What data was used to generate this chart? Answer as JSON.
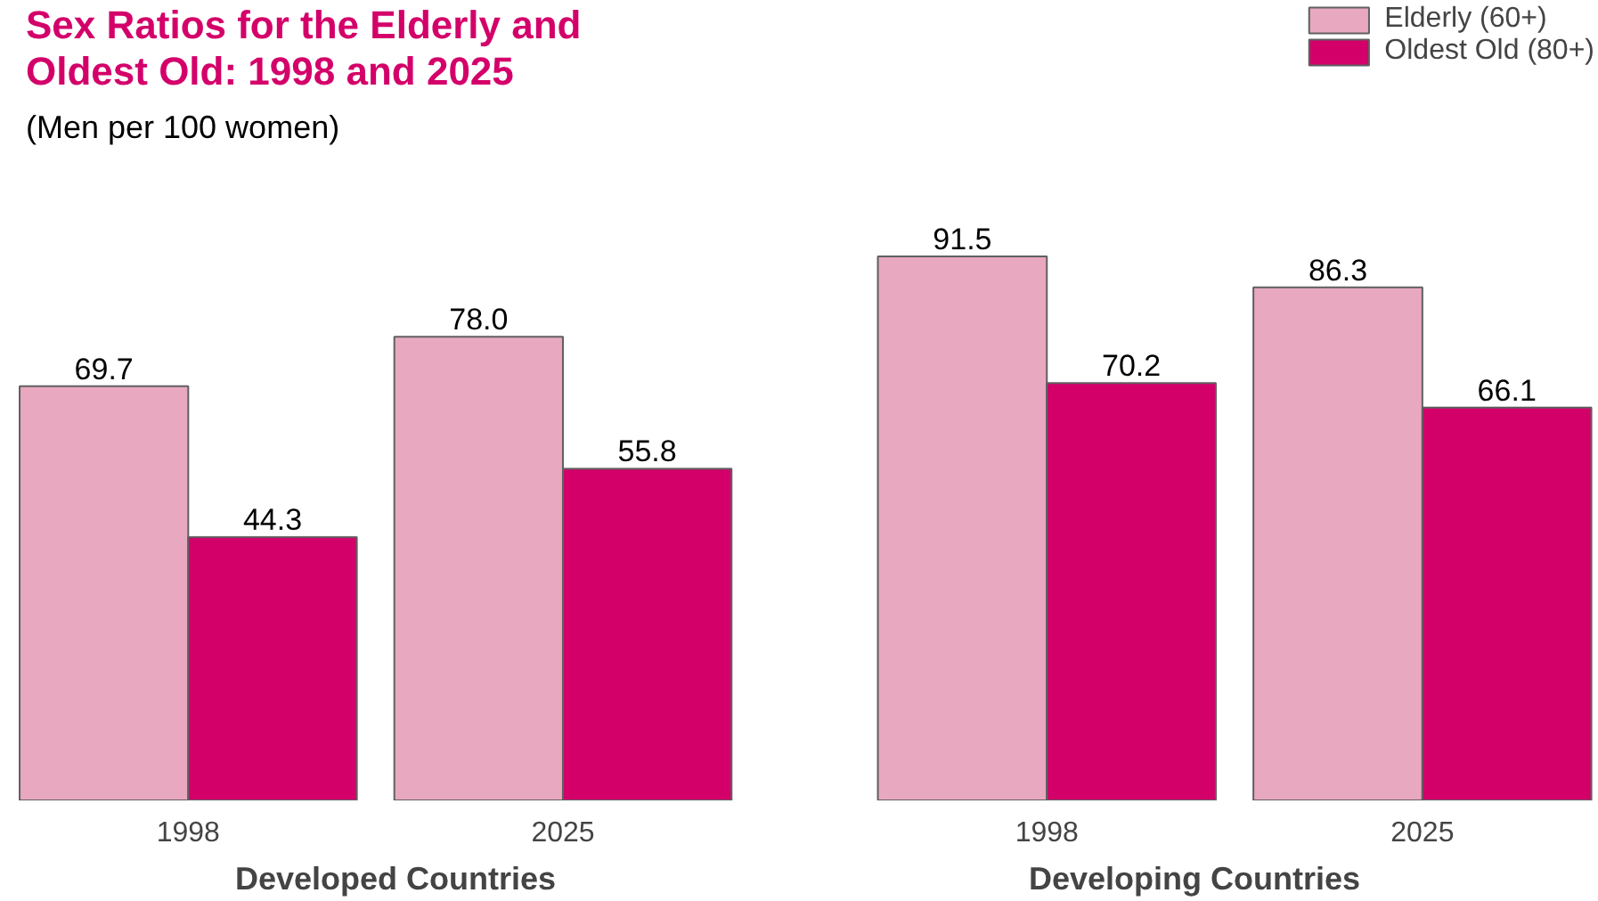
{
  "chart_data": [
    {
      "type": "bar",
      "title": "Sex Ratios for the Elderly and\nOldest Old:  1998 and 2025",
      "subtitle": "(Men per 100 women)",
      "xlabel": "Developed  Countries",
      "categories": [
        "1998",
        "2025"
      ],
      "grid": false,
      "series": [
        {
          "color": "#e8a8c0",
          "values": [
            69.7,
            78.0
          ],
          "value_labels": [
            "69.7",
            "78.0"
          ]
        },
        {
          "color": "#d4006a",
          "values": [
            44.3,
            55.8
          ],
          "value_labels": [
            "44.3",
            "55.8"
          ]
        }
      ]
    },
    {
      "type": "bar",
      "xlabel": "Developing  Countries",
      "categories": [
        "1998",
        "2025"
      ],
      "legend": "top right",
      "grid": false,
      "series": [
        {
          "name": "Elderly (60+)",
          "color": "#e8a8c0",
          "values": [
            91.5,
            86.3
          ],
          "value_labels": [
            "91.5",
            "86.3"
          ]
        },
        {
          "name": "Oldest Old (80+)",
          "color": "#d4006a",
          "values": [
            70.2,
            66.1
          ],
          "value_labels": [
            "70.2",
            "66.1"
          ]
        }
      ]
    }
  ]
}
